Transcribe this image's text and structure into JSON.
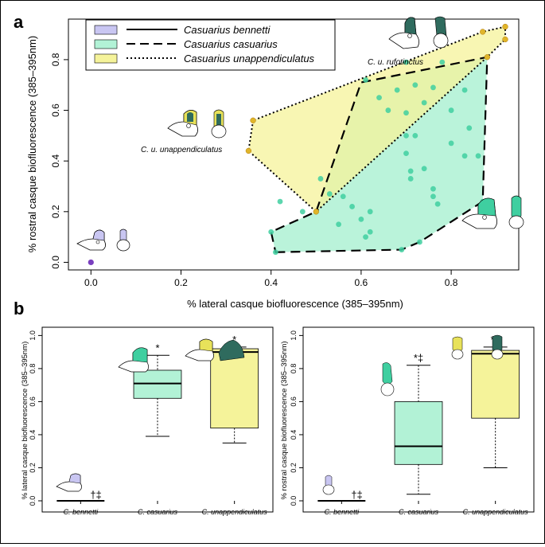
{
  "panels": {
    "a_label": "a",
    "b_label": "b"
  },
  "colors": {
    "bennetti": "#c9c6f2",
    "casuarius": "#b2f2d6",
    "unappendiculatus": "#f5f39a",
    "casuarius_point": "#3fcfa0",
    "unapp_point": "#e0b52a",
    "bennetti_point": "#7a3fbf",
    "casuarius_stroke": "#000000"
  },
  "chart_data": [
    {
      "type": "scatter",
      "panel": "a",
      "xlabel": "% lateral casque biofluorescence (385–395nm)",
      "ylabel": "% rostral casque biofluorescence (385–395nm)",
      "xlim": [
        -0.05,
        0.95
      ],
      "ylim": [
        -0.03,
        0.96
      ],
      "xticks": [
        "0.0",
        "0.2",
        "0.4",
        "0.6",
        "0.8"
      ],
      "yticks": [
        "0.0",
        "0.2",
        "0.4",
        "0.6",
        "0.8"
      ],
      "legend": {
        "position": "top-left",
        "entries": [
          {
            "name": "Casuarius bennetti",
            "line": "solid"
          },
          {
            "name": "Casuarius casuarius",
            "line": "dashed"
          },
          {
            "name": "Casuarius unappendiculatus",
            "line": "dotted"
          }
        ]
      },
      "annotations": [
        {
          "text": "C. u. rufotinctus"
        },
        {
          "text": "C. u. unappendiculatus"
        }
      ],
      "series": [
        {
          "name": "Casuarius bennetti",
          "points": [
            [
              0.0,
              0.0
            ]
          ]
        },
        {
          "name": "Casuarius casuarius",
          "hull": [
            [
              0.41,
              0.04
            ],
            [
              0.69,
              0.05
            ],
            [
              0.73,
              0.08
            ],
            [
              0.87,
              0.24
            ],
            [
              0.88,
              0.81
            ],
            [
              0.6,
              0.71
            ],
            [
              0.5,
              0.2
            ],
            [
              0.4,
              0.12
            ]
          ],
          "points": [
            [
              0.41,
              0.04
            ],
            [
              0.4,
              0.12
            ],
            [
              0.42,
              0.24
            ],
            [
              0.47,
              0.2
            ],
            [
              0.5,
              0.2
            ],
            [
              0.53,
              0.27
            ],
            [
              0.55,
              0.15
            ],
            [
              0.56,
              0.26
            ],
            [
              0.58,
              0.22
            ],
            [
              0.6,
              0.17
            ],
            [
              0.61,
              0.1
            ],
            [
              0.62,
              0.12
            ],
            [
              0.62,
              0.2
            ],
            [
              0.69,
              0.05
            ],
            [
              0.73,
              0.08
            ],
            [
              0.71,
              0.33
            ],
            [
              0.7,
              0.43
            ],
            [
              0.7,
              0.5
            ],
            [
              0.72,
              0.5
            ],
            [
              0.71,
              0.36
            ],
            [
              0.74,
              0.37
            ],
            [
              0.76,
              0.29
            ],
            [
              0.76,
              0.26
            ],
            [
              0.77,
              0.23
            ],
            [
              0.8,
              0.47
            ],
            [
              0.8,
              0.6
            ],
            [
              0.83,
              0.42
            ],
            [
              0.84,
              0.53
            ],
            [
              0.86,
              0.42
            ],
            [
              0.87,
              0.24
            ],
            [
              0.83,
              0.68
            ],
            [
              0.76,
              0.69
            ],
            [
              0.74,
              0.63
            ],
            [
              0.72,
              0.7
            ],
            [
              0.7,
              0.59
            ],
            [
              0.66,
              0.6
            ],
            [
              0.68,
              0.68
            ],
            [
              0.64,
              0.65
            ],
            [
              0.61,
              0.72
            ],
            [
              0.7,
              0.79
            ],
            [
              0.78,
              0.79
            ],
            [
              0.88,
              0.81
            ],
            [
              0.51,
              0.33
            ]
          ]
        },
        {
          "name": "Casuarius unappendiculatus",
          "hull": [
            [
              0.36,
              0.56
            ],
            [
              0.35,
              0.44
            ],
            [
              0.5,
              0.2
            ],
            [
              0.88,
              0.81
            ],
            [
              0.92,
              0.88
            ],
            [
              0.92,
              0.93
            ],
            [
              0.87,
              0.91
            ]
          ],
          "points": [
            [
              0.36,
              0.56
            ],
            [
              0.35,
              0.44
            ],
            [
              0.5,
              0.2
            ],
            [
              0.87,
              0.91
            ],
            [
              0.92,
              0.88
            ],
            [
              0.92,
              0.93
            ],
            [
              0.88,
              0.81
            ]
          ]
        }
      ]
    },
    {
      "type": "box",
      "panel": "b-left",
      "ylabel": "% lateral casque biofluorescence (385–395nm)",
      "ylim": [
        0,
        1.05
      ],
      "yticks": [
        "0.0",
        "0.2",
        "0.4",
        "0.6",
        "0.8",
        "1.0"
      ],
      "categories": [
        "C. bennetti",
        "C. casuarius",
        "C. unappendiculatus"
      ],
      "boxes": [
        {
          "min": 0,
          "q1": 0,
          "median": 0,
          "q3": 0,
          "max": 0,
          "mark": "†‡"
        },
        {
          "min": 0.39,
          "q1": 0.62,
          "median": 0.71,
          "q3": 0.79,
          "max": 0.88,
          "mark": "*"
        },
        {
          "min": 0.35,
          "q1": 0.44,
          "median": 0.9,
          "q3": 0.92,
          "max": 0.93,
          "mark": "*"
        }
      ]
    },
    {
      "type": "box",
      "panel": "b-right",
      "ylabel": "% rostral casque biofluorescence (385–395nm)",
      "ylim": [
        0,
        1.05
      ],
      "yticks": [
        "0.0",
        "0.2",
        "0.4",
        "0.6",
        "0.8",
        "1.0"
      ],
      "categories": [
        "C. bennetti",
        "C. casuarius",
        "C. unappendiculatus"
      ],
      "boxes": [
        {
          "min": 0,
          "q1": 0,
          "median": 0,
          "q3": 0,
          "max": 0,
          "mark": "†‡"
        },
        {
          "min": 0.04,
          "q1": 0.22,
          "median": 0.33,
          "q3": 0.6,
          "max": 0.82,
          "mark": "*‡"
        },
        {
          "min": 0.2,
          "q1": 0.5,
          "median": 0.89,
          "q3": 0.91,
          "max": 0.93,
          "mark": "*†"
        }
      ]
    }
  ]
}
